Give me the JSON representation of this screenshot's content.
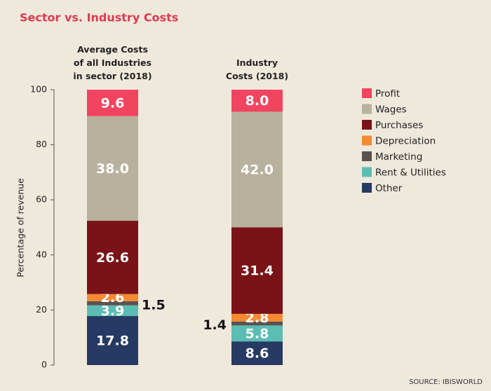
{
  "chart_data": {
    "type": "stacked-bar",
    "title": "Sector vs. Industry Costs",
    "categories": [
      "Average Costs of all Industries in sector (2018)",
      "Industry Costs (2018)"
    ],
    "series": [
      {
        "name": "Profit",
        "color": "#f1445f",
        "values": [
          9.6,
          8.0
        ],
        "value_labels": [
          "9.6",
          "8.0"
        ]
      },
      {
        "name": "Wages",
        "color": "#b7b19e",
        "values": [
          38.0,
          42.0
        ],
        "value_labels": [
          "38.0",
          "42.0"
        ]
      },
      {
        "name": "Purchases",
        "color": "#7a1317",
        "values": [
          26.6,
          31.4
        ],
        "value_labels": [
          "26.6",
          "31.4"
        ]
      },
      {
        "name": "Depreciation",
        "color": "#f58a33",
        "values": [
          2.6,
          2.8
        ],
        "value_labels": [
          "2.6",
          "2.8"
        ]
      },
      {
        "name": "Marketing",
        "color": "#5a5250",
        "values": [
          1.5,
          1.4
        ],
        "value_labels": [
          "1.5",
          "1.4"
        ]
      },
      {
        "name": "Rent & Utilities",
        "color": "#5bbdb3",
        "values": [
          3.9,
          5.8
        ],
        "value_labels": [
          "3.9",
          "5.8"
        ]
      },
      {
        "name": "Other",
        "color": "#263a63",
        "values": [
          17.8,
          8.6
        ],
        "value_labels": [
          "17.8",
          "8.6"
        ]
      }
    ],
    "ylim": [
      0,
      100
    ],
    "yticks": [
      0,
      20,
      40,
      60,
      80,
      100
    ],
    "ylabel": "Percentage of revenue",
    "source": "SOURCE: IBISWORLD",
    "legend": "right"
  }
}
